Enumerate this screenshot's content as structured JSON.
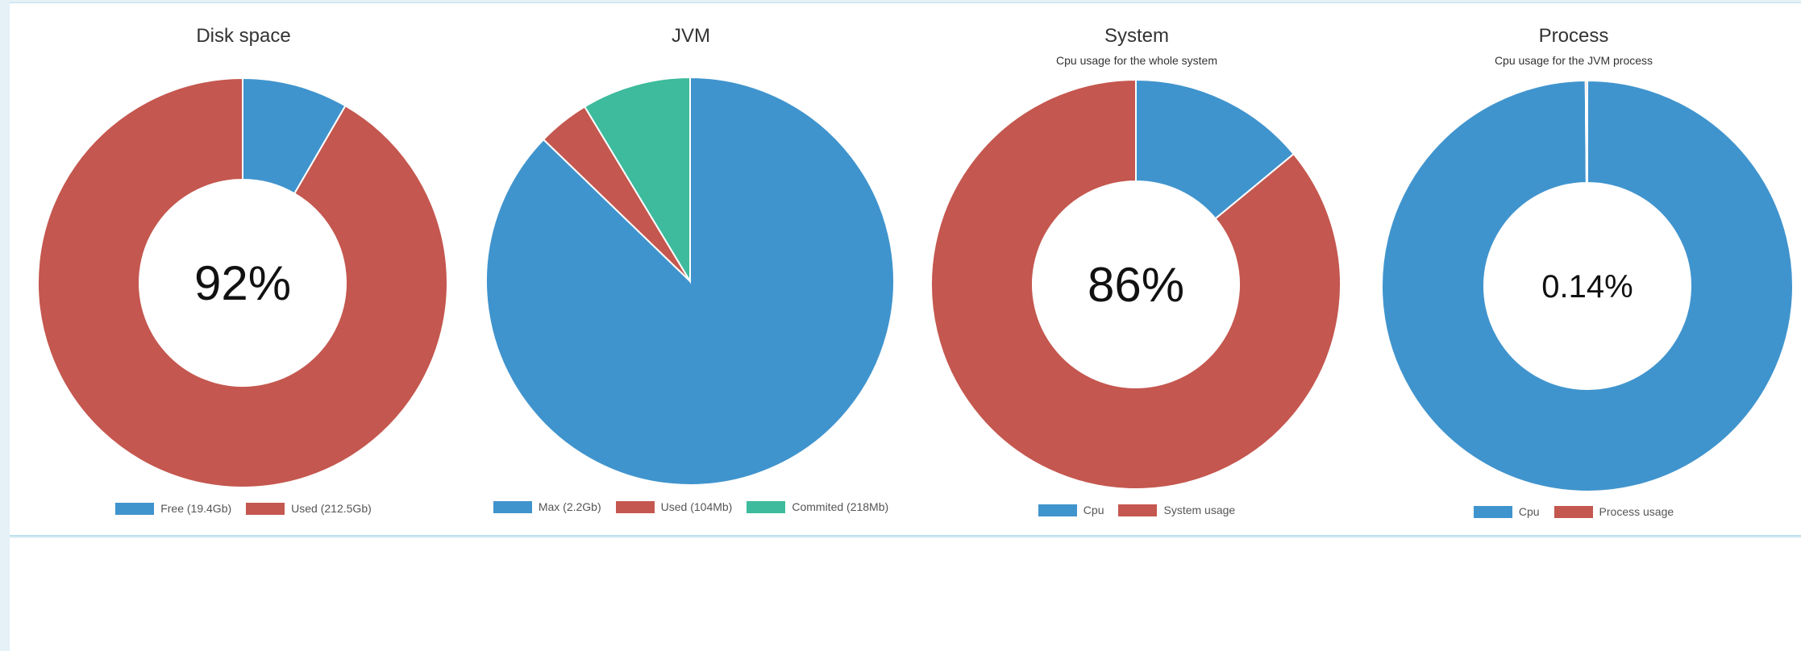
{
  "colors": {
    "blue": "#4094cd",
    "red": "#c4574f",
    "teal": "#3dbb9c"
  },
  "chart_data": [
    {
      "type": "pie",
      "title": "Disk space",
      "subtitle": "",
      "center_label": "92%",
      "donut": true,
      "slices": [
        {
          "label": "Free (19.4Gb)",
          "value": 19.4,
          "color": "#4094cd"
        },
        {
          "label": "Used (212.5Gb)",
          "value": 212.5,
          "color": "#c4574f"
        }
      ]
    },
    {
      "type": "pie",
      "title": "JVM",
      "subtitle": "",
      "center_label": "",
      "donut": false,
      "slices": [
        {
          "label": "Max (2.2Gb)",
          "value": 2200,
          "color": "#4094cd"
        },
        {
          "label": "Used (104Mb)",
          "value": 104,
          "color": "#c4574f"
        },
        {
          "label": "Commited (218Mb)",
          "value": 218,
          "color": "#3dbb9c"
        }
      ]
    },
    {
      "type": "pie",
      "title": "System",
      "subtitle": "Cpu usage for the whole system",
      "center_label": "86%",
      "donut": true,
      "slices": [
        {
          "label": "Cpu",
          "value": 14,
          "color": "#4094cd"
        },
        {
          "label": "System usage",
          "value": 86,
          "color": "#c4574f"
        }
      ]
    },
    {
      "type": "pie",
      "title": "Process",
      "subtitle": "Cpu usage for the JVM process",
      "center_label": "0.14%",
      "donut": true,
      "slices": [
        {
          "label": "Cpu",
          "value": 99.86,
          "color": "#4094cd"
        },
        {
          "label": "Process usage",
          "value": 0.14,
          "color": "#c4574f"
        }
      ]
    }
  ]
}
